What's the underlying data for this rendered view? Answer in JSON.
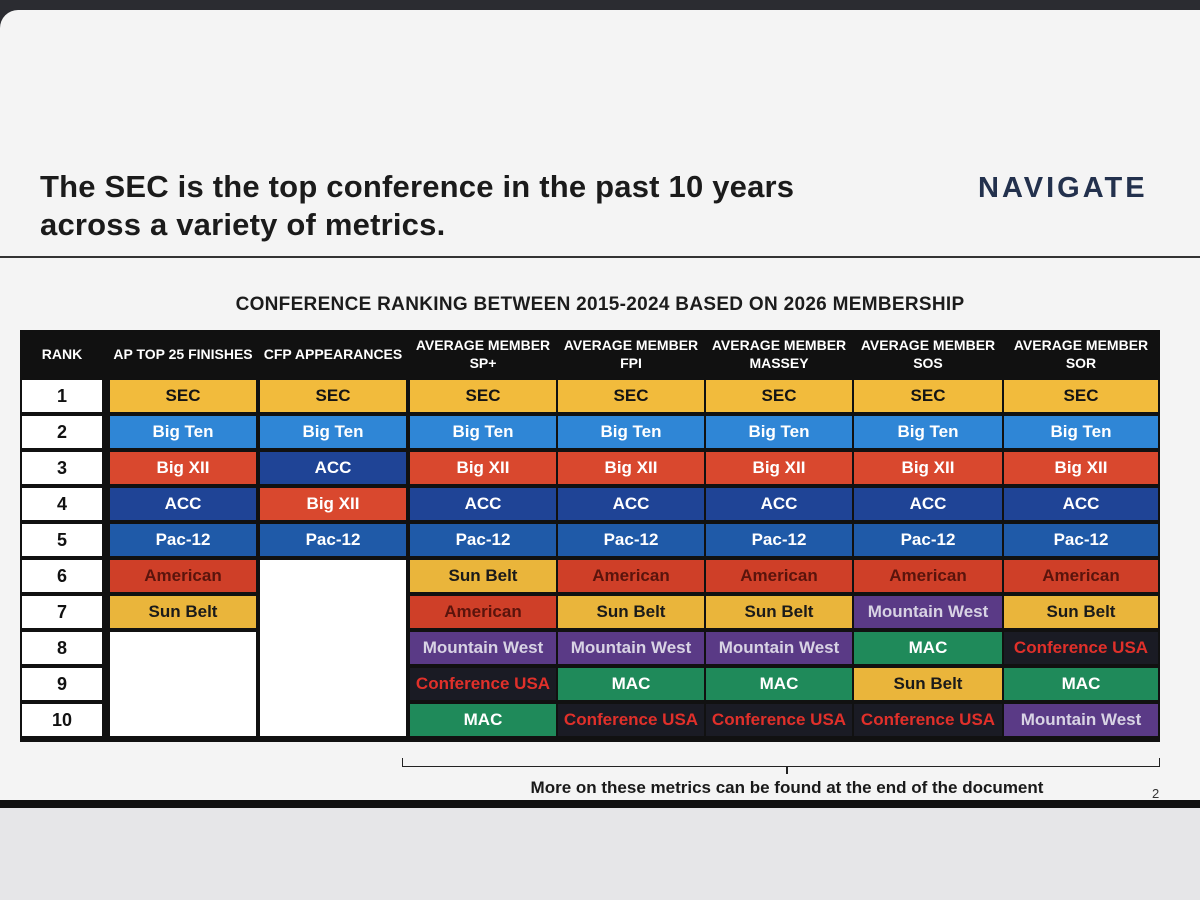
{
  "slide": {
    "headline": "The SEC is the top conference in the past 10 years across a variety of metrics.",
    "logo": "NAVIGATE",
    "table_title": "CONFERENCE RANKING BETWEEN 2015-2024 BASED ON 2026 MEMBERSHIP",
    "footnote": "More on these metrics can be found at the end of the document",
    "page_number": "2"
  },
  "table": {
    "headers": [
      "RANK",
      "AP TOP 25 FINISHES",
      "CFP APPEARANCES",
      "AVERAGE MEMBER SP+",
      "AVERAGE MEMBER FPI",
      "AVERAGE MEMBER MASSEY",
      "AVERAGE MEMBER SOS",
      "AVERAGE MEMBER SOR"
    ],
    "ranks": [
      "1",
      "2",
      "3",
      "4",
      "5",
      "6",
      "7",
      "8",
      "9",
      "10"
    ],
    "columns": [
      [
        "SEC",
        "Big Ten",
        "Big XII",
        "ACC",
        "Pac-12",
        "American",
        "Sun Belt",
        "",
        "",
        ""
      ],
      [
        "SEC",
        "Big Ten",
        "ACC",
        "Big XII",
        "Pac-12",
        "",
        "",
        "",
        "",
        ""
      ],
      [
        "SEC",
        "Big Ten",
        "Big XII",
        "ACC",
        "Pac-12",
        "Sun Belt",
        "American",
        "Mountain West",
        "Conference USA",
        "MAC"
      ],
      [
        "SEC",
        "Big Ten",
        "Big XII",
        "ACC",
        "Pac-12",
        "American",
        "Sun Belt",
        "Mountain West",
        "MAC",
        "Conference USA"
      ],
      [
        "SEC",
        "Big Ten",
        "Big XII",
        "ACC",
        "Pac-12",
        "American",
        "Sun Belt",
        "Mountain West",
        "MAC",
        "Conference USA"
      ],
      [
        "SEC",
        "Big Ten",
        "Big XII",
        "ACC",
        "Pac-12",
        "American",
        "Mountain West",
        "MAC",
        "Sun Belt",
        "Conference USA"
      ],
      [
        "SEC",
        "Big Ten",
        "Big XII",
        "ACC",
        "Pac-12",
        "American",
        "Sun Belt",
        "Conference USA",
        "MAC",
        "Mountain West"
      ]
    ]
  },
  "conference_colors": {
    "SEC": {
      "bg": "#f2bb3c",
      "fg": "#141414"
    },
    "Big Ten": {
      "bg": "#2f86d6",
      "fg": "#ffffff"
    },
    "Big XII": {
      "bg": "#d9482e",
      "fg": "#ffffff"
    },
    "ACC": {
      "bg": "#1f4496",
      "fg": "#ffffff"
    },
    "Pac-12": {
      "bg": "#1f5aa8",
      "fg": "#ffffff"
    },
    "American": {
      "bg": "#cf3f28",
      "fg": "#5a140c"
    },
    "Sun Belt": {
      "bg": "#eab53b",
      "fg": "#1a1a1a"
    },
    "Mountain West": {
      "bg": "#5a3a86",
      "fg": "#d8d3e4"
    },
    "Conference USA": {
      "bg": "#1a1b24",
      "fg": "#e0302a"
    },
    "MAC": {
      "bg": "#1f8a5a",
      "fg": "#ffffff"
    }
  }
}
